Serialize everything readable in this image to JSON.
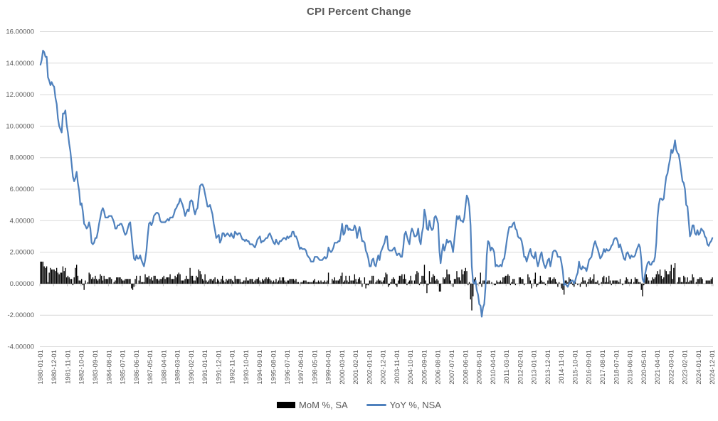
{
  "title": "CPI Percent Change",
  "legend": {
    "items": [
      {
        "label": "MoM %, SA",
        "swatch": "bar-swatch",
        "color": "#000000"
      },
      {
        "label": "YoY %, NSA",
        "swatch": "line-swatch",
        "color": "#4F81BD"
      }
    ]
  },
  "chart_data": {
    "type": "bar+line combo, monthly time series",
    "title": "CPI Percent Change",
    "x_start": "1980-01-01",
    "x_end": "2024-12-01",
    "n_points": 540,
    "x_label_every_n_months": 11,
    "x_tick_labels": [
      "1980-01-01",
      "1980-12-01",
      "1981-11-01",
      "1982-10-01",
      "1983-09-01",
      "1984-08-01",
      "1985-07-01",
      "1986-06-01",
      "1987-05-01",
      "1988-04-01",
      "1989-03-01",
      "1990-02-01",
      "1991-01-01",
      "1991-12-01",
      "1992-11-01",
      "1993-10-01",
      "1994-09-01",
      "1995-08-01",
      "1996-07-01",
      "1997-06-01",
      "1998-05-01",
      "1999-04-01",
      "2000-03-01",
      "2001-02-01",
      "2002-01-01",
      "2002-12-01",
      "2003-11-01",
      "2004-10-01",
      "2005-09-01",
      "2006-08-01",
      "2007-07-01",
      "2008-06-01",
      "2009-05-01",
      "2010-04-01",
      "2011-03-01",
      "2012-02-01",
      "2013-01-01",
      "2013-12-01",
      "2014-11-01",
      "2015-10-01",
      "2016-09-01",
      "2017-08-01",
      "2018-07-01",
      "2019-06-01",
      "2020-05-01",
      "2021-04-01",
      "2022-03-01",
      "2023-02-01",
      "2024-01-01",
      "2024-12-01"
    ],
    "ylim": [
      -4,
      16
    ],
    "y_tick_step": 2,
    "y_tick_labels": [
      "16.00000",
      "14.00000",
      "12.00000",
      "10.00000",
      "8.00000",
      "6.00000",
      "4.00000",
      "2.00000",
      "0.00000",
      "-2.00000",
      "-4.00000"
    ],
    "grid": true,
    "gridline_color": "#D9D9D9",
    "axis_color": "#BFBFBF",
    "text_color": "#595959",
    "legend_position": "bottom",
    "series": [
      {
        "name": "MoM %, SA",
        "type": "bar",
        "color": "#000000",
        "values": [
          1.4,
          1.4,
          1.4,
          1.1,
          1.0,
          1.1,
          0.1,
          0.7,
          1.0,
          0.9,
          0.9,
          0.9,
          0.8,
          1.0,
          0.7,
          0.6,
          0.7,
          0.7,
          1.1,
          0.8,
          1.0,
          0.4,
          0.5,
          0.4,
          0.3,
          0.3,
          -0.1,
          0.4,
          1.0,
          1.2,
          0.5,
          0.2,
          0.2,
          0.3,
          -0.1,
          -0.4,
          0.2,
          0.0,
          0.1,
          0.7,
          0.6,
          0.3,
          0.4,
          0.3,
          0.5,
          0.3,
          0.2,
          0.3,
          0.6,
          0.5,
          0.2,
          0.5,
          0.3,
          0.3,
          0.3,
          0.4,
          0.4,
          0.3,
          0.0,
          0.1,
          0.2,
          0.4,
          0.4,
          0.4,
          0.4,
          0.3,
          0.2,
          0.2,
          0.3,
          0.3,
          0.3,
          0.3,
          0.3,
          -0.3,
          -0.4,
          -0.2,
          0.3,
          0.5,
          0.0,
          0.2,
          0.5,
          0.1,
          0.1,
          0.1,
          0.6,
          0.4,
          0.4,
          0.5,
          0.3,
          0.4,
          0.2,
          0.5,
          0.5,
          0.3,
          0.3,
          0.2,
          0.3,
          0.3,
          0.4,
          0.5,
          0.3,
          0.4,
          0.4,
          0.4,
          0.6,
          0.3,
          0.3,
          0.3,
          0.5,
          0.4,
          0.6,
          0.7,
          0.6,
          0.2,
          0.2,
          0.2,
          0.3,
          0.5,
          0.3,
          0.3,
          1.0,
          0.5,
          0.5,
          0.2,
          0.2,
          0.5,
          0.4,
          0.9,
          0.8,
          0.6,
          0.3,
          0.2,
          0.6,
          0.2,
          0.1,
          0.2,
          0.3,
          0.3,
          0.2,
          0.3,
          0.4,
          0.1,
          0.3,
          0.2,
          0.1,
          0.3,
          0.5,
          0.2,
          0.1,
          0.3,
          0.2,
          0.3,
          0.3,
          0.3,
          0.2,
          0.1,
          0.5,
          0.3,
          0.3,
          0.3,
          0.3,
          0.1,
          0.1,
          0.2,
          0.2,
          0.4,
          0.2,
          0.2,
          0.3,
          0.3,
          0.3,
          0.1,
          0.2,
          0.3,
          0.3,
          0.4,
          0.2,
          0.1,
          0.3,
          0.2,
          0.3,
          0.4,
          0.3,
          0.4,
          0.3,
          0.2,
          0.1,
          0.2,
          0.1,
          0.3,
          0.1,
          0.2,
          0.4,
          0.2,
          0.4,
          0.4,
          0.2,
          0.1,
          0.2,
          0.2,
          0.3,
          0.3,
          0.3,
          0.3,
          0.2,
          0.3,
          0.1,
          0.1,
          0.0,
          0.1,
          0.1,
          0.2,
          0.2,
          0.2,
          0.1,
          0.1,
          0.1,
          0.1,
          0.1,
          0.2,
          0.3,
          0.1,
          0.1,
          0.2,
          0.1,
          0.2,
          0.1,
          0.1,
          0.2,
          0.1,
          0.2,
          0.7,
          0.0,
          0.0,
          0.3,
          0.2,
          0.4,
          0.2,
          0.2,
          0.2,
          0.3,
          0.5,
          0.7,
          0.1,
          0.2,
          0.5,
          0.2,
          0.1,
          0.5,
          0.2,
          0.2,
          0.2,
          0.6,
          0.3,
          0.1,
          0.3,
          0.4,
          0.2,
          -0.2,
          0.0,
          0.4,
          -0.3,
          -0.1,
          -0.1,
          0.2,
          0.2,
          0.5,
          0.5,
          0.0,
          0.1,
          0.2,
          0.3,
          0.2,
          0.2,
          0.1,
          0.2,
          0.4,
          0.7,
          0.6,
          -0.2,
          -0.1,
          0.1,
          0.3,
          0.4,
          0.3,
          -0.1,
          -0.2,
          0.2,
          0.5,
          0.5,
          0.6,
          0.3,
          0.6,
          0.3,
          -0.1,
          0.1,
          0.2,
          0.5,
          0.2,
          0.0,
          0.2,
          0.6,
          0.8,
          0.7,
          -0.1,
          0.1,
          0.5,
          0.5,
          1.2,
          0.2,
          -0.6,
          -0.1,
          0.8,
          0.1,
          0.4,
          0.6,
          0.5,
          0.2,
          0.3,
          0.2,
          -0.5,
          -0.5,
          0.0,
          0.4,
          0.3,
          0.4,
          0.9,
          0.6,
          0.6,
          0.2,
          0.0,
          -0.2,
          0.3,
          0.3,
          0.8,
          0.4,
          0.4,
          0.2,
          0.9,
          0.6,
          0.8,
          1.0,
          0.8,
          -0.1,
          0.1,
          -1.0,
          -1.7,
          -0.8,
          0.3,
          0.4,
          -0.1,
          0.0,
          0.1,
          0.7,
          -0.2,
          0.2,
          0.2,
          0.3,
          0.1,
          0.2,
          0.2,
          0.0,
          0.1,
          0.0,
          -0.1,
          -0.1,
          0.2,
          0.1,
          0.1,
          0.2,
          0.1,
          0.4,
          0.4,
          0.5,
          0.5,
          0.6,
          0.5,
          -0.1,
          0.1,
          0.3,
          0.3,
          -0.1,
          0.0,
          0.0,
          0.4,
          0.4,
          0.3,
          0.3,
          -0.1,
          0.0,
          0.0,
          0.6,
          0.4,
          0.2,
          -0.3,
          0.0,
          0.3,
          0.7,
          -0.2,
          -0.1,
          0.1,
          0.5,
          0.2,
          0.1,
          0.1,
          -0.1,
          0.0,
          0.2,
          0.4,
          0.4,
          0.2,
          0.3,
          0.4,
          0.3,
          0.1,
          -0.2,
          0.1,
          0.0,
          -0.3,
          -0.4,
          -0.7,
          0.2,
          0.2,
          0.1,
          0.4,
          0.3,
          0.1,
          -0.1,
          -0.2,
          0.2,
          0.0,
          -0.1,
          0.0,
          -0.2,
          0.1,
          0.4,
          0.2,
          0.2,
          -0.2,
          0.1,
          0.3,
          0.4,
          0.2,
          0.3,
          0.6,
          0.1,
          0.1,
          0.2,
          -0.1,
          0.0,
          0.1,
          0.4,
          0.5,
          0.1,
          0.4,
          0.1,
          0.5,
          0.2,
          -0.1,
          0.2,
          0.2,
          0.2,
          0.2,
          0.2,
          0.1,
          0.3,
          0.0,
          -0.1,
          0.0,
          0.2,
          0.4,
          0.3,
          0.1,
          0.1,
          0.3,
          0.0,
          0.1,
          0.4,
          0.3,
          0.3,
          0.1,
          0.1,
          -0.4,
          -0.8,
          -0.1,
          0.6,
          0.6,
          0.4,
          0.2,
          0.0,
          0.2,
          0.4,
          0.3,
          0.4,
          0.6,
          0.8,
          0.6,
          0.9,
          0.5,
          0.3,
          0.4,
          0.9,
          0.8,
          0.6,
          0.6,
          0.8,
          1.2,
          0.3,
          1.0,
          1.3,
          0.0,
          0.1,
          0.4,
          0.4,
          0.1,
          0.1,
          0.5,
          0.4,
          0.1,
          0.4,
          0.1,
          0.2,
          0.2,
          0.6,
          0.4,
          0.0,
          0.1,
          0.3,
          0.3,
          0.4,
          0.4,
          0.3,
          0.0,
          0.0,
          0.2,
          0.2,
          0.2,
          0.2,
          0.3,
          0.4
        ]
      },
      {
        "name": "YoY %, NSA",
        "type": "line",
        "color": "#4F81BD",
        "values": [
          13.9,
          14.2,
          14.8,
          14.7,
          14.4,
          14.4,
          13.1,
          12.9,
          12.6,
          12.8,
          12.6,
          12.5,
          11.8,
          11.4,
          10.5,
          10.0,
          9.8,
          9.6,
          10.8,
          10.8,
          11.0,
          10.1,
          9.6,
          8.9,
          8.4,
          7.6,
          6.8,
          6.5,
          6.7,
          7.1,
          6.4,
          5.9,
          5.0,
          5.1,
          4.6,
          3.8,
          3.7,
          3.5,
          3.6,
          3.9,
          3.5,
          2.6,
          2.5,
          2.6,
          2.9,
          2.9,
          3.3,
          3.8,
          4.2,
          4.6,
          4.8,
          4.6,
          4.2,
          4.2,
          4.2,
          4.3,
          4.3,
          4.3,
          4.1,
          3.9,
          3.5,
          3.5,
          3.7,
          3.7,
          3.8,
          3.8,
          3.6,
          3.3,
          3.1,
          3.2,
          3.5,
          3.8,
          3.9,
          3.1,
          2.3,
          1.6,
          1.5,
          1.8,
          1.6,
          1.6,
          1.8,
          1.5,
          1.3,
          1.1,
          1.5,
          2.1,
          3.0,
          3.8,
          3.9,
          3.7,
          3.9,
          4.3,
          4.4,
          4.5,
          4.5,
          4.4,
          4.0,
          3.9,
          3.9,
          3.9,
          3.9,
          4.0,
          4.1,
          4.0,
          4.2,
          4.2,
          4.2,
          4.4,
          4.7,
          4.8,
          5.0,
          5.1,
          5.4,
          5.2,
          5.0,
          4.7,
          4.3,
          4.5,
          4.7,
          4.6,
          5.2,
          5.3,
          5.2,
          4.7,
          4.4,
          4.7,
          4.8,
          5.6,
          6.2,
          6.3,
          6.3,
          6.1,
          5.7,
          5.3,
          4.9,
          4.9,
          5.0,
          4.7,
          4.4,
          3.8,
          3.4,
          2.9,
          3.0,
          3.1,
          2.6,
          2.8,
          3.2,
          3.2,
          3.0,
          3.1,
          3.2,
          3.1,
          3.0,
          3.2,
          3.0,
          2.9,
          3.3,
          3.2,
          3.1,
          3.2,
          3.2,
          3.0,
          2.8,
          2.8,
          2.7,
          2.8,
          2.7,
          2.7,
          2.5,
          2.5,
          2.5,
          2.4,
          2.3,
          2.5,
          2.8,
          2.9,
          3.0,
          2.6,
          2.7,
          2.7,
          2.8,
          2.9,
          2.9,
          3.1,
          3.2,
          3.0,
          2.8,
          2.6,
          2.5,
          2.8,
          2.6,
          2.5,
          2.7,
          2.7,
          2.8,
          2.9,
          2.9,
          2.8,
          3.0,
          2.9,
          3.0,
          3.0,
          3.3,
          3.3,
          3.0,
          3.0,
          2.8,
          2.5,
          2.2,
          2.3,
          2.2,
          2.2,
          2.2,
          2.1,
          1.8,
          1.7,
          1.6,
          1.4,
          1.4,
          1.4,
          1.7,
          1.7,
          1.7,
          1.6,
          1.5,
          1.5,
          1.5,
          1.6,
          1.7,
          1.6,
          1.7,
          2.3,
          2.1,
          2.0,
          2.1,
          2.3,
          2.6,
          2.6,
          2.6,
          2.7,
          2.7,
          3.2,
          3.8,
          3.1,
          3.2,
          3.7,
          3.7,
          3.4,
          3.5,
          3.4,
          3.4,
          3.4,
          3.7,
          3.5,
          2.9,
          3.3,
          3.6,
          3.2,
          2.7,
          2.7,
          2.6,
          2.1,
          1.9,
          1.6,
          1.1,
          1.1,
          1.5,
          1.6,
          1.2,
          1.1,
          1.5,
          1.8,
          1.5,
          2.0,
          2.2,
          2.4,
          2.6,
          3.0,
          3.0,
          2.2,
          2.1,
          2.1,
          2.1,
          2.2,
          2.3,
          2.0,
          1.8,
          1.9,
          1.9,
          1.7,
          1.7,
          2.3,
          3.1,
          3.3,
          3.0,
          2.7,
          2.5,
          3.2,
          3.5,
          3.3,
          3.0,
          3.0,
          3.1,
          3.5,
          2.8,
          2.5,
          3.2,
          3.6,
          4.7,
          4.3,
          3.5,
          3.4,
          4.0,
          3.6,
          3.4,
          3.5,
          4.2,
          4.3,
          4.1,
          3.8,
          2.1,
          1.3,
          2.0,
          2.5,
          2.1,
          2.4,
          2.8,
          2.6,
          2.7,
          2.7,
          2.4,
          2.0,
          2.8,
          3.5,
          4.3,
          4.1,
          4.3,
          4.0,
          4.0,
          3.9,
          4.2,
          5.0,
          5.6,
          5.4,
          4.9,
          3.7,
          1.1,
          0.1,
          0.0,
          0.2,
          -0.4,
          -0.7,
          -1.3,
          -1.4,
          -2.1,
          -1.5,
          -1.3,
          -0.2,
          1.8,
          2.7,
          2.6,
          2.1,
          2.3,
          2.2,
          2.0,
          1.1,
          1.2,
          1.1,
          1.1,
          1.2,
          1.1,
          1.5,
          1.6,
          2.1,
          2.7,
          3.2,
          3.6,
          3.6,
          3.6,
          3.8,
          3.9,
          3.5,
          3.4,
          3.0,
          2.9,
          2.9,
          2.7,
          2.3,
          1.7,
          1.7,
          1.4,
          1.7,
          2.0,
          2.2,
          1.8,
          1.7,
          1.6,
          2.0,
          1.5,
          1.1,
          1.4,
          1.8,
          2.0,
          1.5,
          1.2,
          1.0,
          1.2,
          1.5,
          1.6,
          1.1,
          1.5,
          2.0,
          2.1,
          2.1,
          2.0,
          1.7,
          1.7,
          1.7,
          1.3,
          0.8,
          -0.1,
          0.0,
          -0.1,
          -0.2,
          0.0,
          0.1,
          0.2,
          0.2,
          0.0,
          0.2,
          0.5,
          0.7,
          1.4,
          1.0,
          0.9,
          1.1,
          1.0,
          1.0,
          0.8,
          1.1,
          1.5,
          1.6,
          1.7,
          2.1,
          2.5,
          2.7,
          2.4,
          2.2,
          1.9,
          1.6,
          1.7,
          1.9,
          2.2,
          2.0,
          2.2,
          2.1,
          2.1,
          2.2,
          2.4,
          2.5,
          2.8,
          2.9,
          2.9,
          2.7,
          2.3,
          2.5,
          2.2,
          1.9,
          1.6,
          1.5,
          1.9,
          2.0,
          1.8,
          1.6,
          1.8,
          1.7,
          1.7,
          1.8,
          2.1,
          2.3,
          2.5,
          2.3,
          1.5,
          0.3,
          0.1,
          0.6,
          1.0,
          1.3,
          1.4,
          1.2,
          1.2,
          1.4,
          1.4,
          1.7,
          2.6,
          4.2,
          5.0,
          5.4,
          5.4,
          5.3,
          5.4,
          6.2,
          6.8,
          7.0,
          7.5,
          7.9,
          8.5,
          8.3,
          8.6,
          9.1,
          8.5,
          8.3,
          8.2,
          7.7,
          7.1,
          6.5,
          6.4,
          6.0,
          5.0,
          4.9,
          4.0,
          3.0,
          3.2,
          3.7,
          3.7,
          3.2,
          3.1,
          3.4,
          3.1,
          3.2,
          3.5,
          3.4,
          3.3,
          3.0,
          2.9,
          2.5,
          2.4,
          2.6,
          2.7,
          2.9
        ]
      }
    ]
  }
}
